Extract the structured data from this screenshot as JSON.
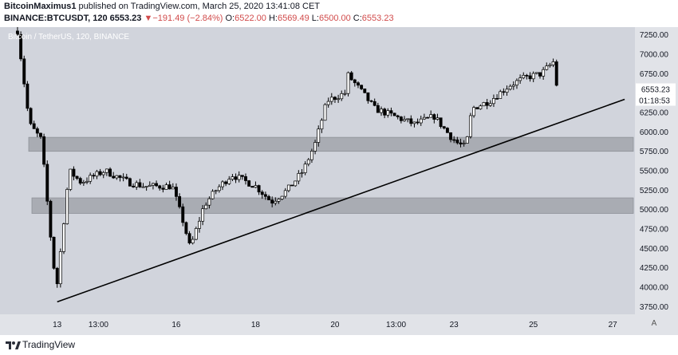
{
  "header": {
    "author": "BitcoinMaximus1",
    "published_text": " published on TradingView.com, March 25, 2020 13:41:08 CET",
    "symbol": "BINANCE:BTCUSDT, 120",
    "last": "6553.23",
    "change_arrow": "▼",
    "change": "−191.49 (−2.84%)",
    "o_label": "O:",
    "o_val": "6522.00",
    "h_label": "H:",
    "h_val": "6569.49",
    "l_label": "L:",
    "l_val": "6500.00",
    "c_label": "C:",
    "c_val": "6553.23"
  },
  "footer": {
    "brand": "TradingView",
    "auto_label": "A"
  },
  "colors": {
    "plot_bg": "#d1d4dc",
    "axis_bg": "#e1e3e8",
    "zone_fill": "#a9acb3",
    "price_label_bg": "#ffffff",
    "candle_up": "#ffffff",
    "candle_down": "#000000",
    "trendline": "#000000"
  },
  "chart_data": {
    "type": "candlestick",
    "title": "Bitcoin / TetherUS, 120, BINANCE",
    "ylim": [
      3650,
      7350
    ],
    "y_ticks": [
      3750,
      4000,
      4250,
      4500,
      4750,
      5000,
      5250,
      5500,
      5750,
      6000,
      6250,
      6500,
      6750,
      7000,
      7250
    ],
    "y_tick_labels": [
      "3750.00",
      "4000.00",
      "4250.00",
      "4500.00",
      "4750.00",
      "5000.00",
      "5250.00",
      "5500.00",
      "5750.00",
      "6000.00",
      "6250.00",
      "6500.00",
      "6750.00",
      "7000.00",
      "7250.00"
    ],
    "x_range_days": [
      11.8,
      27.8
    ],
    "x_ticks": [
      {
        "label": "13",
        "day": 13.0
      },
      {
        "label": "13:00",
        "day": 14.04
      },
      {
        "label": "16",
        "day": 16.0
      },
      {
        "label": "18",
        "day": 18.0
      },
      {
        "label": "20",
        "day": 20.0
      },
      {
        "label": "13:00",
        "day": 21.54
      },
      {
        "label": "23",
        "day": 23.0
      },
      {
        "label": "25",
        "day": 25.0
      },
      {
        "label": "27",
        "day": 27.0
      }
    ],
    "last_price": "6553.23",
    "countdown": "01:18:53",
    "zones": [
      {
        "low": 5750,
        "high": 5930
      },
      {
        "low": 4950,
        "high": 5150
      }
    ],
    "trendline": {
      "day1": 13.0,
      "price1": 3810,
      "day2": 27.3,
      "price2": 6420
    },
    "grid": false,
    "legend": "none",
    "anchors": [
      [
        12.0,
        7300
      ],
      [
        12.3,
        6100
      ],
      [
        12.6,
        5900
      ],
      [
        12.9,
        4300
      ],
      [
        13.0,
        4050
      ],
      [
        13.3,
        5500
      ],
      [
        13.6,
        5350
      ],
      [
        14.2,
        5500
      ],
      [
        14.8,
        5350
      ],
      [
        15.2,
        5300
      ],
      [
        15.9,
        5300
      ],
      [
        16.2,
        4800
      ],
      [
        16.35,
        4500
      ],
      [
        16.7,
        5050
      ],
      [
        17.0,
        5250
      ],
      [
        17.4,
        5450
      ],
      [
        18.0,
        5300
      ],
      [
        18.4,
        5100
      ],
      [
        18.8,
        5250
      ],
      [
        19.2,
        5500
      ],
      [
        19.5,
        5850
      ],
      [
        19.8,
        6400
      ],
      [
        20.25,
        6500
      ],
      [
        20.3,
        6750
      ],
      [
        20.7,
        6500
      ],
      [
        21.0,
        6300
      ],
      [
        21.5,
        6200
      ],
      [
        22.0,
        6100
      ],
      [
        22.5,
        6200
      ],
      [
        22.9,
        5950
      ],
      [
        23.1,
        5850
      ],
      [
        23.3,
        5800
      ],
      [
        23.45,
        6300
      ],
      [
        23.9,
        6400
      ],
      [
        24.4,
        6600
      ],
      [
        24.8,
        6700
      ],
      [
        25.2,
        6750
      ],
      [
        25.5,
        6900
      ],
      [
        25.6,
        6553
      ]
    ]
  }
}
